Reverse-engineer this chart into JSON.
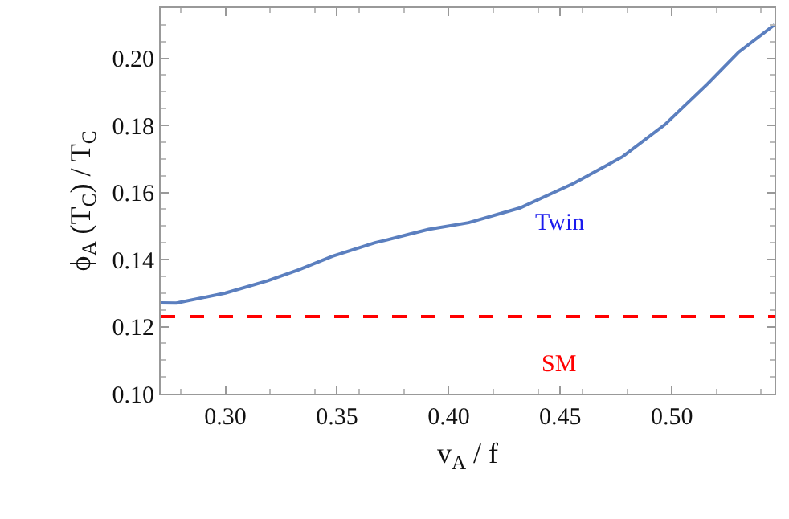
{
  "chart_data": {
    "type": "line",
    "xlabel": "v$_{A}$ / f",
    "ylabel": "ϕ$_{A}$ (T$_{C}$) / T$_{C}$",
    "x": [
      0.271,
      0.278,
      0.3,
      0.319,
      0.333,
      0.348,
      0.367,
      0.372,
      0.391,
      0.409,
      0.432,
      0.456,
      0.478,
      0.497,
      0.516,
      0.53,
      0.546
    ],
    "series": [
      {
        "name": "Twin",
        "color": "#5b7fbf",
        "values": [
          0.1271,
          0.127,
          0.13,
          0.1337,
          0.137,
          0.141,
          0.145,
          0.1458,
          0.149,
          0.151,
          0.1554,
          0.1627,
          0.1707,
          0.1803,
          0.1924,
          0.2019,
          0.21
        ]
      }
    ],
    "xlim": [
      0.271,
      0.546
    ],
    "xticks": [
      {
        "value": 0.3,
        "label": "0.30"
      },
      0.35,
      {
        "value": 0.4,
        "label": "0.40"
      },
      0.45,
      {
        "value": 0.5,
        "label": "0.50"
      }
    ],
    "ylim": [
      0.1,
      0.215
    ],
    "yticks": [
      {
        "value": 0.1,
        "label": "0.10"
      },
      0.12,
      0.14,
      0.16,
      0.18,
      {
        "value": 0.2,
        "label": "0.20"
      }
    ],
    "ref_lines": [
      {
        "axis": "y",
        "value": 0.123,
        "color": "#ff0000",
        "line_style": "dashed",
        "label": "SM"
      }
    ],
    "legend": false,
    "marker": "none",
    "line_style": "solid"
  }
}
